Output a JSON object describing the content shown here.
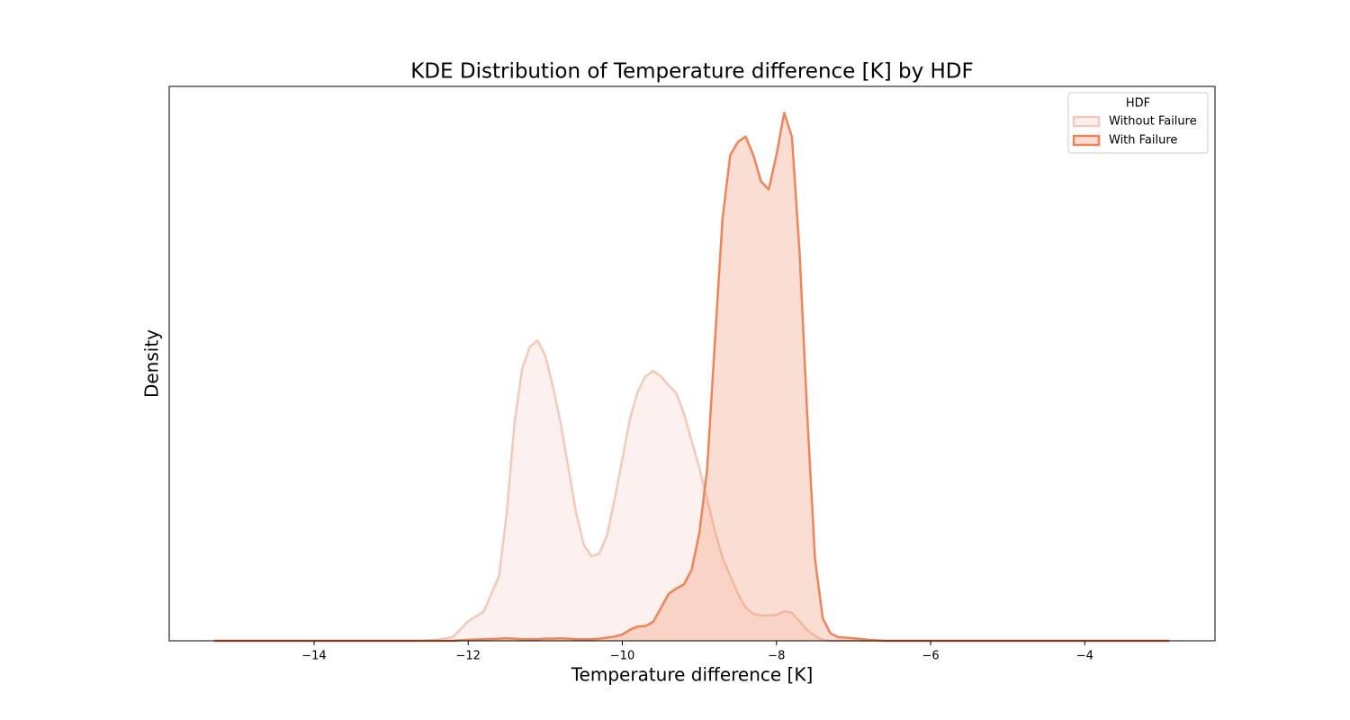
{
  "chart_data": {
    "type": "kde",
    "title": "KDE Distribution of Temperature difference [K] by HDF",
    "x_label": "Temperature difference [K]",
    "y_label": "Density",
    "legend_title": "HDF",
    "legend_position": "upper right",
    "x": [
      -15.3,
      -12.6,
      -12.4,
      -12.2,
      -12.0,
      -11.8,
      -11.6,
      -11.5,
      -11.4,
      -11.3,
      -11.2,
      -11.1,
      -11.0,
      -10.9,
      -10.8,
      -10.7,
      -10.6,
      -10.5,
      -10.4,
      -10.3,
      -10.2,
      -10.1,
      -10.0,
      -9.9,
      -9.8,
      -9.7,
      -9.6,
      -9.5,
      -9.4,
      -9.3,
      -9.2,
      -9.1,
      -9.0,
      -8.9,
      -8.8,
      -8.7,
      -8.6,
      -8.5,
      -8.4,
      -8.3,
      -8.2,
      -8.1,
      -8.0,
      -7.9,
      -7.8,
      -7.7,
      -7.6,
      -7.5,
      -7.4,
      -7.3,
      -7.2,
      -7.0,
      -6.8,
      -6.6,
      -2.9
    ],
    "series": [
      {
        "name": "Without Failure",
        "color": "#f3c9bb",
        "fill_opacity": 0.25,
        "values": [
          0,
          0,
          0.002,
          0.007,
          0.037,
          0.055,
          0.123,
          0.242,
          0.412,
          0.515,
          0.557,
          0.569,
          0.54,
          0.481,
          0.412,
          0.327,
          0.242,
          0.182,
          0.16,
          0.165,
          0.199,
          0.268,
          0.344,
          0.421,
          0.472,
          0.501,
          0.511,
          0.501,
          0.484,
          0.469,
          0.43,
          0.378,
          0.327,
          0.268,
          0.208,
          0.157,
          0.123,
          0.089,
          0.063,
          0.051,
          0.048,
          0.048,
          0.049,
          0.056,
          0.053,
          0.037,
          0.02,
          0.009,
          0.002,
          0,
          0,
          0,
          0,
          0,
          0
        ]
      },
      {
        "name": "With Failure",
        "color": "#ef845b",
        "fill_opacity": 0.27,
        "values": [
          0,
          0,
          0,
          0,
          0.002,
          0.003,
          0.004,
          0.005,
          0.004,
          0.003,
          0.003,
          0.003,
          0.004,
          0.004,
          0.005,
          0.004,
          0.003,
          0.003,
          0.003,
          0.004,
          0.006,
          0.008,
          0.012,
          0.021,
          0.027,
          0.028,
          0.036,
          0.062,
          0.089,
          0.099,
          0.107,
          0.135,
          0.205,
          0.325,
          0.565,
          0.8,
          0.92,
          0.945,
          0.955,
          0.92,
          0.87,
          0.855,
          0.92,
          1.0,
          0.955,
          0.735,
          0.425,
          0.155,
          0.043,
          0.014,
          0.007,
          0.005,
          0.002,
          0,
          0
        ]
      }
    ],
    "xlim": [
      -15.88,
      -2.31
    ],
    "ylim": [
      0,
      1.05
    ],
    "xticks": [
      {
        "value": -14,
        "label": "−14"
      },
      {
        "value": -12,
        "label": "−12"
      },
      {
        "value": -10,
        "label": "−10"
      },
      {
        "value": -8,
        "label": "−8"
      },
      {
        "value": -6,
        "label": "−6"
      },
      {
        "value": -4,
        "label": "−4"
      }
    ]
  }
}
